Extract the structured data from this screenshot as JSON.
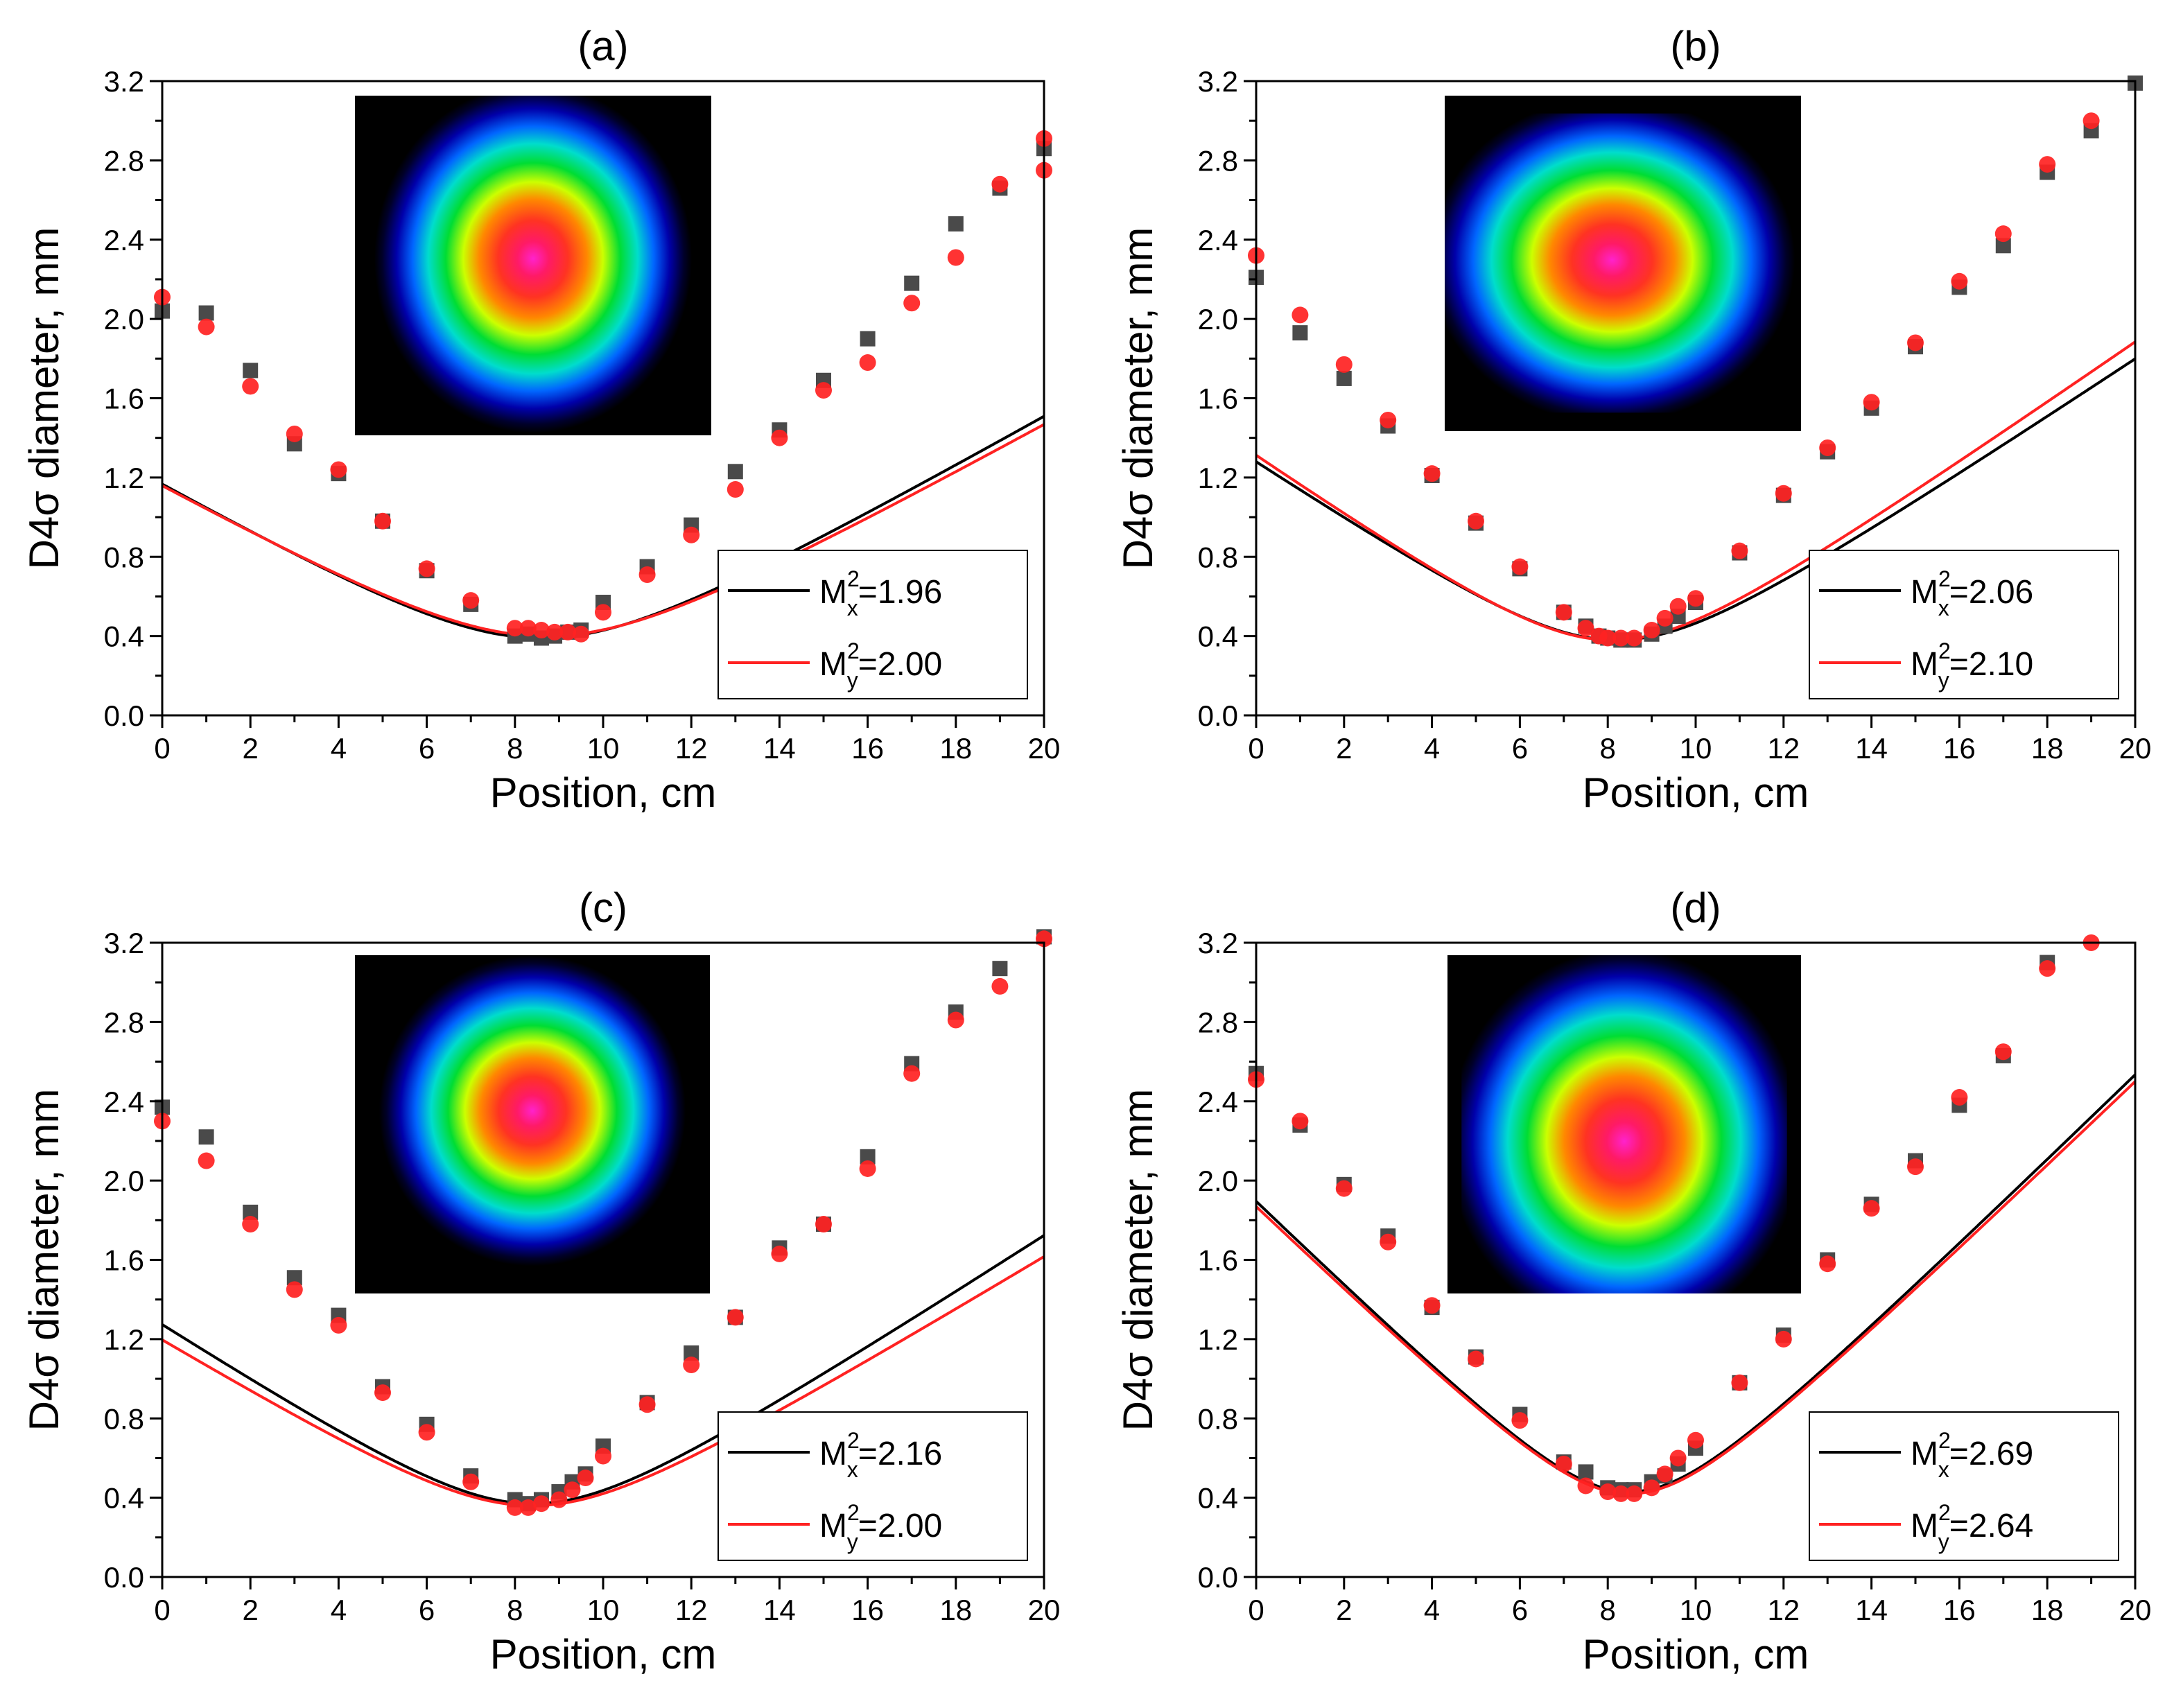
{
  "colors": {
    "series_x": "#000000",
    "series_x_marker": "#4a4a4a",
    "series_y": "#ff2222"
  },
  "chart_data": [
    {
      "type": "scatter",
      "title": "(a)",
      "xlabel": "Position, cm",
      "ylabel": "D4σ diameter, mm",
      "xlim": [
        0,
        20
      ],
      "ylim": [
        0,
        3.2
      ],
      "xticks": [
        "0",
        "2",
        "4",
        "6",
        "8",
        "10",
        "12",
        "14",
        "16",
        "18",
        "20"
      ],
      "yticks": [
        "0.0",
        "0.4",
        "0.8",
        "1.2",
        "1.6",
        "2.0",
        "2.4",
        "2.8",
        "3.2"
      ],
      "legend": [
        {
          "prefix": "M",
          "sup": "2",
          "sub": "x",
          "value": "=1.96"
        },
        {
          "prefix": "M",
          "sup": "2",
          "sub": "y",
          "value": "=2.00"
        }
      ],
      "inset": {
        "center": [
          0.5,
          0.48
        ],
        "radii": [
          0.33,
          0.38
        ]
      },
      "series": [
        {
          "name": "Mx",
          "fit": {
            "w0": 0.39,
            "z0": 8.6,
            "zr": 3.05
          },
          "points": [
            [
              0,
              2.04
            ],
            [
              1,
              2.03
            ],
            [
              2,
              1.74
            ],
            [
              3,
              1.37
            ],
            [
              4,
              1.22
            ],
            [
              5,
              0.98
            ],
            [
              6,
              0.73
            ],
            [
              7,
              0.56
            ],
            [
              8,
              0.4
            ],
            [
              8.3,
              0.41
            ],
            [
              8.6,
              0.39
            ],
            [
              8.9,
              0.4
            ],
            [
              9.2,
              0.42
            ],
            [
              9.5,
              0.43
            ],
            [
              10,
              0.57
            ],
            [
              11,
              0.75
            ],
            [
              12,
              0.96
            ],
            [
              13,
              1.23
            ],
            [
              14,
              1.44
            ],
            [
              15,
              1.69
            ],
            [
              16,
              1.9
            ],
            [
              17,
              2.18
            ],
            [
              18,
              2.48
            ],
            [
              19,
              2.66
            ],
            [
              20,
              2.86
            ]
          ]
        },
        {
          "name": "My",
          "fit": {
            "w0": 0.4,
            "z0": 8.7,
            "zr": 3.2
          },
          "points": [
            [
              0,
              2.11
            ],
            [
              1,
              1.96
            ],
            [
              2,
              1.66
            ],
            [
              3,
              1.42
            ],
            [
              4,
              1.24
            ],
            [
              5,
              0.98
            ],
            [
              6,
              0.74
            ],
            [
              7,
              0.58
            ],
            [
              8,
              0.44
            ],
            [
              8.3,
              0.44
            ],
            [
              8.6,
              0.43
            ],
            [
              8.9,
              0.42
            ],
            [
              9.2,
              0.42
            ],
            [
              9.5,
              0.41
            ],
            [
              10,
              0.52
            ],
            [
              11,
              0.71
            ],
            [
              12,
              0.91
            ],
            [
              13,
              1.14
            ],
            [
              14,
              1.4
            ],
            [
              15,
              1.64
            ],
            [
              16,
              1.78
            ],
            [
              17,
              2.08
            ],
            [
              18,
              2.31
            ],
            [
              19,
              2.68
            ],
            [
              20,
              2.75
            ],
            [
              20,
              2.91
            ]
          ]
        }
      ]
    },
    {
      "type": "scatter",
      "title": "(b)",
      "xlabel": "Position, cm",
      "ylabel": "D4σ diameter, mm",
      "xlim": [
        0,
        20
      ],
      "ylim": [
        0,
        3.2
      ],
      "xticks": [
        "0",
        "2",
        "4",
        "6",
        "8",
        "10",
        "12",
        "14",
        "16",
        "18",
        "20"
      ],
      "yticks": [
        "0.0",
        "0.4",
        "0.8",
        "1.2",
        "1.6",
        "2.0",
        "2.4",
        "2.8",
        "3.2"
      ],
      "legend": [
        {
          "prefix": "M",
          "sup": "2",
          "sub": "x",
          "value": "=2.06"
        },
        {
          "prefix": "M",
          "sup": "2",
          "sub": "y",
          "value": "=2.10"
        }
      ],
      "inset": {
        "center": [
          0.47,
          0.49
        ],
        "radii": [
          0.38,
          0.36
        ]
      },
      "series": [
        {
          "name": "Mx",
          "fit": {
            "w0": 0.38,
            "z0": 8.2,
            "zr": 2.55
          },
          "points": [
            [
              0,
              2.21
            ],
            [
              1,
              1.93
            ],
            [
              2,
              1.7
            ],
            [
              3,
              1.46
            ],
            [
              4,
              1.21
            ],
            [
              5,
              0.97
            ],
            [
              6,
              0.74
            ],
            [
              7,
              0.52
            ],
            [
              7.5,
              0.45
            ],
            [
              7.8,
              0.4
            ],
            [
              8,
              0.39
            ],
            [
              8.3,
              0.38
            ],
            [
              8.6,
              0.38
            ],
            [
              9,
              0.41
            ],
            [
              9.3,
              0.45
            ],
            [
              9.6,
              0.5
            ],
            [
              10,
              0.57
            ],
            [
              11,
              0.82
            ],
            [
              12,
              1.11
            ],
            [
              13,
              1.33
            ],
            [
              14,
              1.55
            ],
            [
              15,
              1.86
            ],
            [
              16,
              2.16
            ],
            [
              17,
              2.37
            ],
            [
              18,
              2.74
            ],
            [
              19,
              2.95
            ],
            [
              20,
              3.19
            ]
          ]
        },
        {
          "name": "My",
          "fit": {
            "w0": 0.38,
            "z0": 8.1,
            "zr": 2.45
          },
          "points": [
            [
              0,
              2.32
            ],
            [
              1,
              2.02
            ],
            [
              2,
              1.77
            ],
            [
              3,
              1.49
            ],
            [
              4,
              1.22
            ],
            [
              5,
              0.98
            ],
            [
              6,
              0.75
            ],
            [
              7,
              0.52
            ],
            [
              7.5,
              0.44
            ],
            [
              7.8,
              0.4
            ],
            [
              8,
              0.39
            ],
            [
              8.3,
              0.39
            ],
            [
              8.6,
              0.39
            ],
            [
              9,
              0.43
            ],
            [
              9.3,
              0.49
            ],
            [
              9.6,
              0.55
            ],
            [
              10,
              0.59
            ],
            [
              11,
              0.83
            ],
            [
              12,
              1.12
            ],
            [
              13,
              1.35
            ],
            [
              14,
              1.58
            ],
            [
              15,
              1.88
            ],
            [
              16,
              2.19
            ],
            [
              17,
              2.43
            ],
            [
              18,
              2.78
            ],
            [
              19,
              3.0
            ]
          ]
        }
      ]
    },
    {
      "type": "scatter",
      "title": "(c)",
      "xlabel": "Position, cm",
      "ylabel": "D4σ diameter, mm",
      "xlim": [
        0,
        20
      ],
      "ylim": [
        0,
        3.2
      ],
      "xticks": [
        "0",
        "2",
        "4",
        "6",
        "8",
        "10",
        "12",
        "14",
        "16",
        "18",
        "20"
      ],
      "yticks": [
        "0.0",
        "0.4",
        "0.8",
        "1.2",
        "1.6",
        "2.0",
        "2.4",
        "2.8",
        "3.2"
      ],
      "legend": [
        {
          "prefix": "M",
          "sup": "2",
          "sub": "x",
          "value": "=2.16"
        },
        {
          "prefix": "M",
          "sup": "2",
          "sub": "y",
          "value": "=2.00"
        }
      ],
      "inset": {
        "center": [
          0.5,
          0.46
        ],
        "radii": [
          0.32,
          0.34
        ]
      },
      "series": [
        {
          "name": "Mx",
          "fit": {
            "w0": 0.37,
            "z0": 8.4,
            "zr": 2.55
          },
          "points": [
            [
              0,
              2.37
            ],
            [
              1,
              2.22
            ],
            [
              2,
              1.84
            ],
            [
              3,
              1.51
            ],
            [
              4,
              1.32
            ],
            [
              5,
              0.96
            ],
            [
              6,
              0.77
            ],
            [
              7,
              0.51
            ],
            [
              8,
              0.39
            ],
            [
              8.3,
              0.37
            ],
            [
              8.6,
              0.39
            ],
            [
              9,
              0.43
            ],
            [
              9.3,
              0.48
            ],
            [
              9.6,
              0.52
            ],
            [
              10,
              0.66
            ],
            [
              11,
              0.88
            ],
            [
              12,
              1.13
            ],
            [
              13,
              1.31
            ],
            [
              14,
              1.66
            ],
            [
              15,
              1.78
            ],
            [
              16,
              2.12
            ],
            [
              17,
              2.59
            ],
            [
              18,
              2.85
            ],
            [
              19,
              3.07
            ],
            [
              20,
              3.23
            ]
          ]
        },
        {
          "name": "My",
          "fit": {
            "w0": 0.36,
            "z0": 8.4,
            "zr": 2.65
          },
          "points": [
            [
              0,
              2.3
            ],
            [
              1,
              2.1
            ],
            [
              2,
              1.78
            ],
            [
              3,
              1.45
            ],
            [
              4,
              1.27
            ],
            [
              5,
              0.93
            ],
            [
              6,
              0.73
            ],
            [
              7,
              0.48
            ],
            [
              8,
              0.35
            ],
            [
              8.3,
              0.35
            ],
            [
              8.6,
              0.37
            ],
            [
              9,
              0.39
            ],
            [
              9.3,
              0.44
            ],
            [
              9.6,
              0.5
            ],
            [
              10,
              0.61
            ],
            [
              11,
              0.87
            ],
            [
              12,
              1.07
            ],
            [
              13,
              1.31
            ],
            [
              14,
              1.63
            ],
            [
              15,
              1.78
            ],
            [
              16,
              2.06
            ],
            [
              17,
              2.54
            ],
            [
              18,
              2.81
            ],
            [
              19,
              2.98
            ],
            [
              20,
              3.22
            ]
          ]
        }
      ]
    },
    {
      "type": "scatter",
      "title": "(d)",
      "xlabel": "Position, cm",
      "ylabel": "D4σ diameter, mm",
      "xlim": [
        0,
        20
      ],
      "ylim": [
        0,
        3.2
      ],
      "xticks": [
        "0",
        "2",
        "4",
        "6",
        "8",
        "10",
        "12",
        "14",
        "16",
        "18",
        "20"
      ],
      "yticks": [
        "0.0",
        "0.4",
        "0.8",
        "1.2",
        "1.6",
        "2.0",
        "2.4",
        "2.8",
        "3.2"
      ],
      "legend": [
        {
          "prefix": "M",
          "sup": "2",
          "sub": "x",
          "value": "=2.69"
        },
        {
          "prefix": "M",
          "sup": "2",
          "sub": "y",
          "value": "=2.64"
        }
      ],
      "inset": {
        "center": [
          0.5,
          0.55
        ],
        "radii": [
          0.37,
          0.42
        ]
      },
      "series": [
        {
          "name": "Mx",
          "fit": {
            "w0": 0.43,
            "z0": 8.5,
            "zr": 1.98
          },
          "points": [
            [
              0,
              2.54
            ],
            [
              1,
              2.28
            ],
            [
              2,
              1.98
            ],
            [
              3,
              1.72
            ],
            [
              4,
              1.36
            ],
            [
              5,
              1.11
            ],
            [
              6,
              0.82
            ],
            [
              7,
              0.58
            ],
            [
              7.5,
              0.53
            ],
            [
              8,
              0.45
            ],
            [
              8.3,
              0.44
            ],
            [
              8.6,
              0.44
            ],
            [
              9,
              0.48
            ],
            [
              9.3,
              0.51
            ],
            [
              9.6,
              0.57
            ],
            [
              10,
              0.65
            ],
            [
              11,
              0.98
            ],
            [
              12,
              1.22
            ],
            [
              13,
              1.6
            ],
            [
              14,
              1.88
            ],
            [
              15,
              2.1
            ],
            [
              16,
              2.38
            ],
            [
              17,
              2.63
            ],
            [
              18,
              3.1
            ]
          ]
        },
        {
          "name": "My",
          "fit": {
            "w0": 0.42,
            "z0": 8.5,
            "zr": 1.96
          },
          "points": [
            [
              0,
              2.51
            ],
            [
              1,
              2.3
            ],
            [
              2,
              1.96
            ],
            [
              3,
              1.69
            ],
            [
              4,
              1.37
            ],
            [
              5,
              1.1
            ],
            [
              6,
              0.79
            ],
            [
              7,
              0.57
            ],
            [
              7.5,
              0.46
            ],
            [
              8,
              0.43
            ],
            [
              8.3,
              0.42
            ],
            [
              8.6,
              0.42
            ],
            [
              9,
              0.45
            ],
            [
              9.3,
              0.52
            ],
            [
              9.6,
              0.6
            ],
            [
              10,
              0.69
            ],
            [
              11,
              0.98
            ],
            [
              12,
              1.2
            ],
            [
              13,
              1.58
            ],
            [
              14,
              1.86
            ],
            [
              15,
              2.07
            ],
            [
              16,
              2.42
            ],
            [
              17,
              2.65
            ],
            [
              18,
              3.07
            ],
            [
              19,
              3.2
            ]
          ]
        }
      ]
    }
  ]
}
